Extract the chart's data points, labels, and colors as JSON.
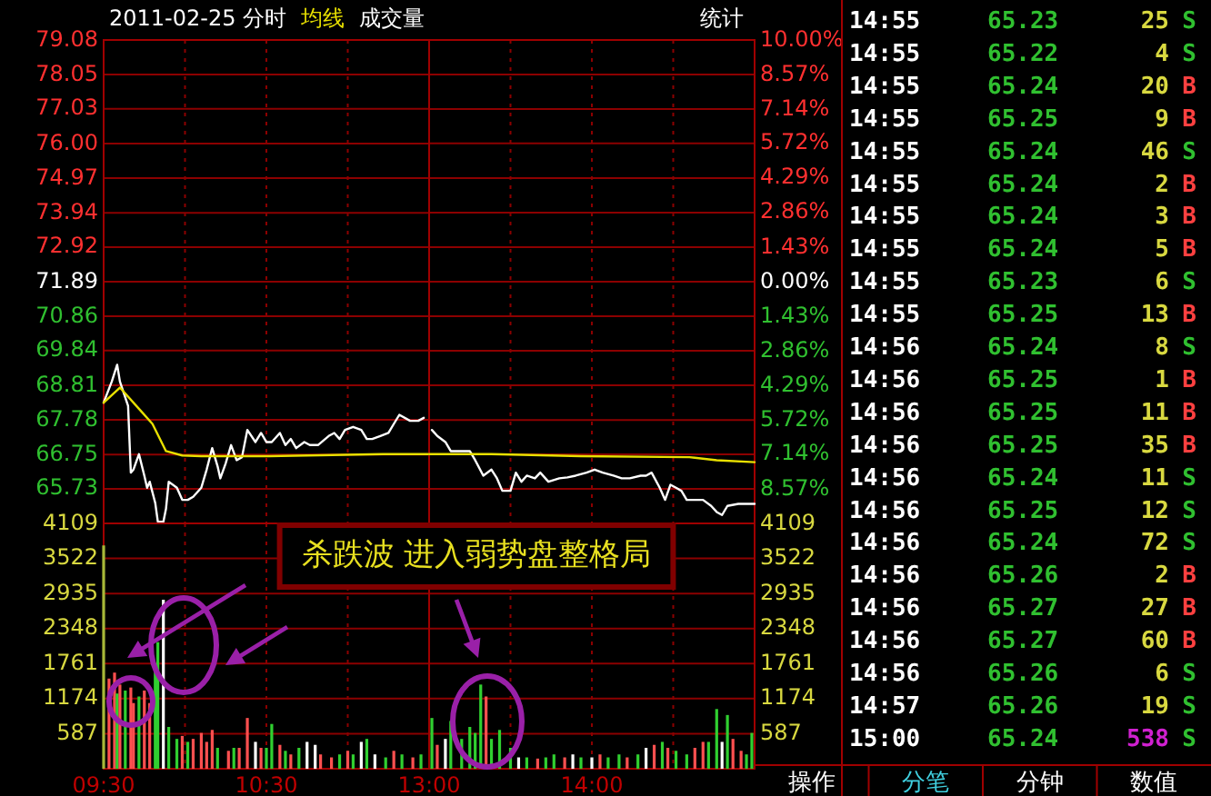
{
  "chart_data": [
    {
      "type": "line",
      "title": "2011-02-25 分时",
      "legend": "top",
      "grid": true,
      "tick_labels": "y",
      "xlim": [
        9.5,
        11.5
      ],
      "xticks": [
        9.5,
        10,
        10.5,
        11
      ],
      "ylim": [
        64.7,
        79.08
      ],
      "yticks": [
        79.08,
        78.05,
        77.03,
        {
          "value": 76.0,
          "label": "76.00"
        },
        74.97,
        73.94,
        72.92,
        71.89,
        70.86,
        69.84,
        68.81,
        67.78,
        66.75,
        65.73
      ],
      "annotations": [
        "统计"
      ],
      "series": [
        {
          "color": "#ffffff",
          "x": [
            9.5,
            9.55,
            9.583,
            9.6,
            9.65,
            9.667,
            9.683,
            9.717,
            9.75,
            9.767,
            9.783,
            9.817,
            9.833,
            9.867,
            9.883,
            9.9,
            9.95,
            9.983,
            10.017,
            10.05,
            10.1,
            10.133,
            10.167,
            10.2,
            10.217,
            10.25,
            10.283,
            10.317,
            10.35,
            10.383,
            10.433,
            10.467,
            10.5,
            10.533,
            10.583,
            10.617,
            10.65,
            10.683,
            10.733,
            10.767,
            10.817,
            10.883,
            10.917,
            10.95,
            10.983,
            11.033,
            11.083,
            11.117,
            11.15,
            11.2,
            11.25,
            11.283,
            11.317,
            11.383,
            11.433,
            11.467
          ],
          "values": [
            68.29,
            68.92,
            69.42,
            68.92,
            68.2,
            66.21,
            66.3,
            66.76,
            66.12,
            65.76,
            65.94,
            65.31,
            64.75,
            64.75,
            65.13,
            65.94,
            65.76,
            65.4,
            65.4,
            65.49,
            65.76,
            66.3,
            66.94,
            66.4,
            66.04,
            66.49,
            67.03,
            66.58,
            66.67,
            67.48,
            67.12,
            67.39,
            67.12,
            67.12,
            67.39,
            67.03,
            67.21,
            66.94,
            67.12,
            67.03,
            67.03,
            67.3,
            67.39,
            67.21,
            67.48,
            67.57,
            67.48,
            67.21,
            67.21,
            67.3,
            67.39,
            67.66,
            67.93,
            67.75,
            67.75,
            67.84
          ]
        },
        {
          "name": "均线",
          "color": "#e8e000",
          "x": [
            9.5,
            9.6,
            9.717,
            9.8,
            9.883,
            9.983,
            10.1,
            10.517,
            11.217,
            11.5
          ],
          "values": [
            68.29,
            68.74,
            68.11,
            67.66,
            66.85,
            66.72,
            66.7,
            66.7,
            66.76,
            66.76
          ]
        }
      ]
    },
    {
      "type": "line",
      "grid": true,
      "tick_labels": "y",
      "xlim": [
        13,
        15
      ],
      "xticks": [
        13,
        13.5,
        14,
        14.5
      ],
      "ylim": [
        64.7,
        79.08
      ],
      "y2lim": [
        -10,
        10
      ],
      "y2ticks": [
        {
          "value": 10,
          "label": "10.00%"
        },
        {
          "value": 8.57,
          "label": "8.57%"
        },
        {
          "value": 7.14,
          "label": "7.14%"
        },
        {
          "value": 5.72,
          "label": "5.72%"
        },
        {
          "value": 4.29,
          "label": "4.29%"
        },
        {
          "value": 2.86,
          "label": "2.86%"
        },
        {
          "value": 1.43,
          "label": "1.43%"
        },
        {
          "value": 0,
          "label": "0.00%"
        },
        {
          "value": -1.43,
          "label": "1.43%"
        },
        {
          "value": -2.86,
          "label": "2.86%"
        },
        {
          "value": -4.29,
          "label": "4.29%"
        },
        {
          "value": -5.72,
          "label": "5.72%"
        },
        {
          "value": -7.14,
          "label": "7.14%"
        },
        {
          "value": -8.57,
          "label": "8.57%"
        }
      ],
      "series": [
        {
          "color": "#ffffff",
          "x": [
            13.017,
            13.05,
            13.1,
            13.133,
            13.2,
            13.25,
            13.283,
            13.333,
            13.383,
            13.417,
            13.45,
            13.5,
            13.533,
            13.567,
            13.6,
            13.65,
            13.683,
            13.733,
            13.8,
            13.85,
            13.9,
            13.967,
            14.017,
            14.067,
            14.133,
            14.183,
            14.233,
            14.3,
            14.333,
            14.367,
            14.417,
            14.45,
            14.483,
            14.517,
            14.55,
            14.583,
            14.633,
            14.683,
            14.733,
            14.767,
            14.8,
            14.833,
            14.9,
            15
          ],
          "values": [
            67.48,
            67.3,
            67.12,
            66.85,
            66.85,
            66.85,
            66.58,
            66.12,
            66.3,
            66.04,
            65.67,
            65.67,
            66.21,
            65.94,
            66.12,
            66.04,
            66.21,
            65.94,
            66.04,
            66.07,
            66.12,
            66.21,
            66.3,
            66.21,
            66.12,
            66.04,
            66.04,
            66.12,
            66.12,
            66.21,
            65.76,
            65.4,
            65.85,
            65.76,
            65.67,
            65.4,
            65.4,
            65.4,
            65.22,
            65.04,
            64.95,
            65.22,
            65.28,
            65.28
          ]
        },
        {
          "color": "#e8e000",
          "x": [
            13,
            13.383,
            13.933,
            14.6,
            14.767,
            15
          ],
          "values": [
            66.76,
            66.76,
            66.7,
            66.67,
            66.58,
            66.52
          ]
        }
      ]
    },
    {
      "type": "bar",
      "legend": "top",
      "grid": true,
      "xlim": [
        9.5,
        11.5
      ],
      "xticks": [
        {
          "value": 9.5,
          "label": "09:30"
        },
        {
          "value": 10,
          "label": null
        },
        {
          "value": 10.5,
          "label": "10:30"
        },
        {
          "value": 11,
          "label": null
        }
      ],
      "ylim": [
        0,
        4109
      ],
      "yticks": [
        587,
        1174,
        1761,
        2348,
        2935,
        3522,
        4109
      ],
      "annotations": [
        "杀跌波 进入弱势盘整格局"
      ],
      "series": [
        {
          "name": "成交量",
          "x": [
            9.5,
            9.533,
            9.567,
            9.583,
            9.6,
            9.633,
            9.667,
            9.683,
            9.717,
            9.75,
            9.783,
            9.817,
            9.833,
            9.867,
            9.9,
            9.95,
            9.983,
            10.017,
            10.05,
            10.1,
            10.133,
            10.167,
            10.2,
            10.267,
            10.3,
            10.333,
            10.383,
            10.433,
            10.467,
            10.5,
            10.533,
            10.583,
            10.617,
            10.65,
            10.7,
            10.75,
            10.8,
            10.833,
            10.9,
            10.95,
            11,
            11.033,
            11.083,
            11.117,
            11.167,
            11.233,
            11.283,
            11.333,
            11.4,
            11.45
          ],
          "values": [
            3740,
            1510,
            1610,
            1260,
            1410,
            1310,
            1360,
            1100,
            1210,
            1310,
            1100,
            1710,
            2120,
            2830,
            700,
            500,
            550,
            450,
            500,
            600,
            450,
            650,
            350,
            300,
            350,
            350,
            850,
            450,
            350,
            350,
            750,
            400,
            300,
            240,
            350,
            450,
            400,
            240,
            190,
            240,
            300,
            240,
            450,
            500,
            240,
            190,
            300,
            240,
            190,
            240
          ],
          "colors": [
            "#a8b838",
            "#ff5050",
            "#ff5050",
            "#30d030",
            "#ff5050",
            "#30d030",
            "#ff5050",
            "#ff5050",
            "#30d030",
            "#ff5050",
            "#ff5050",
            "#30d030",
            "#30d030",
            "#ffffff",
            "#30d030",
            "#30d030",
            "#ff5050",
            "#30d030",
            "#ff5050",
            "#ff5050",
            "#ff5050",
            "#ff5050",
            "#30d030",
            "#ff5050",
            "#30d030",
            "#ff5050",
            "#ff5050",
            "#ffffff",
            "#ff5050",
            "#30d030",
            "#30d030",
            "#ff5050",
            "#30d030",
            "#ff5050",
            "#30d030",
            "#ffffff",
            "#ffffff",
            "#ff5050",
            "#ff5050",
            "#30d030",
            "#ff5050",
            "#30d030",
            "#ffffff",
            "#30d030",
            "#ffffff",
            "#30d030",
            "#ff5050",
            "#30d030",
            "#ff5050",
            "#30d030"
          ]
        }
      ]
    },
    {
      "type": "bar",
      "grid": true,
      "xlim": [
        13,
        15
      ],
      "xticks": [
        {
          "value": 13,
          "label": "13:00"
        },
        {
          "value": 13.5,
          "label": null
        },
        {
          "value": 14,
          "label": "14:00"
        },
        {
          "value": 14.5,
          "label": null
        }
      ],
      "y2lim": [
        0,
        4109
      ],
      "y2ticks": [
        587,
        1174,
        1761,
        2348,
        2935,
        3522,
        4109
      ],
      "series": [
        {
          "axis": "y2",
          "x": [
            13.017,
            13.05,
            13.1,
            13.133,
            13.2,
            13.25,
            13.283,
            13.317,
            13.35,
            13.383,
            13.433,
            13.5,
            13.55,
            13.6,
            13.667,
            13.717,
            13.767,
            13.833,
            13.883,
            13.933,
            14,
            14.05,
            14.1,
            14.167,
            14.217,
            14.283,
            14.333,
            14.383,
            14.433,
            14.467,
            14.517,
            14.583,
            14.633,
            14.683,
            14.717,
            14.767,
            14.8,
            14.833,
            14.867,
            14.917,
            14.95,
            14.983
          ],
          "values": [
            850,
            400,
            500,
            800,
            500,
            700,
            600,
            1410,
            1210,
            500,
            650,
            350,
            190,
            190,
            170,
            190,
            240,
            190,
            240,
            190,
            190,
            240,
            190,
            240,
            190,
            240,
            350,
            400,
            450,
            350,
            300,
            240,
            350,
            450,
            450,
            1000,
            450,
            900,
            500,
            300,
            240,
            600
          ],
          "colors": [
            "#30d030",
            "#ff5050",
            "#ffffff",
            "#30d030",
            "#30d030",
            "#30d030",
            "#30d030",
            "#30d030",
            "#ff5050",
            "#30d030",
            "#30d030",
            "#30d030",
            "#ffffff",
            "#30d030",
            "#ff5050",
            "#30d030",
            "#30d030",
            "#ff5050",
            "#ffffff",
            "#30d030",
            "#ffffff",
            "#ff5050",
            "#30d030",
            "#30d030",
            "#ff5050",
            "#30d030",
            "#ffffff",
            "#ff5050",
            "#30d030",
            "#ff5050",
            "#30d030",
            "#30d030",
            "#ff5050",
            "#ff5050",
            "#30d030",
            "#30d030",
            "#ffffff",
            "#30d030",
            "#ff5050",
            "#ff5050",
            "#30d030",
            "#30d030"
          ]
        }
      ]
    },
    {
      "type": "other",
      "annotations": [
        "14:55",
        "65.23",
        "25",
        "S",
        "14:55",
        "65.22",
        "4",
        "S",
        "14:55",
        "65.24",
        "20",
        "B",
        "14:55",
        "65.25",
        "9",
        "B",
        "14:55",
        "65.24",
        "46",
        "S",
        "14:55",
        "65.24",
        "2",
        "B",
        "14:55",
        "65.24",
        "3",
        "B",
        "14:55",
        "65.24",
        "5",
        "B",
        "14:55",
        "65.23",
        "6",
        "S",
        "14:55",
        "65.25",
        "13",
        "B",
        "14:56",
        "65.24",
        "8",
        "S",
        "14:56",
        "65.25",
        "1",
        "B",
        "14:56",
        "65.25",
        "11",
        "B",
        "14:56",
        "65.25",
        "35",
        "B",
        "14:56",
        "65.24",
        "11",
        "S",
        "14:56",
        "65.25",
        "12",
        "S",
        "14:56",
        "65.24",
        "72",
        "S",
        "14:56",
        "65.26",
        "2",
        "B",
        "14:56",
        "65.27",
        "27",
        "B",
        "14:56",
        "65.27",
        "60",
        "B",
        "14:56",
        "65.26",
        "6",
        "S",
        "14:57",
        "65.26",
        "19",
        "S",
        "15:00",
        "65.24",
        "538",
        "S"
      ],
      "categories": [
        "操作",
        "分笔",
        "分钟",
        "数值"
      ],
      "colors": [
        "#ffffff",
        "#30c030",
        "#d8d840",
        "#30c030",
        "#ffffff",
        "#30c030",
        "#d8d840",
        "#30c030",
        "#ffffff",
        "#30c030",
        "#d8d840",
        "#ff4040",
        "#ffffff",
        "#30c030",
        "#d8d840",
        "#ff4040",
        "#ffffff",
        "#30c030",
        "#d8d840",
        "#30c030",
        "#ffffff",
        "#30c030",
        "#d8d840",
        "#ff4040",
        "#ffffff",
        "#30c030",
        "#d8d840",
        "#ff4040",
        "#ffffff",
        "#30c030",
        "#d8d840",
        "#ff4040",
        "#ffffff",
        "#30c030",
        "#d8d840",
        "#30c030",
        "#ffffff",
        "#30c030",
        "#d8d840",
        "#ff4040",
        "#ffffff",
        "#30c030",
        "#d8d840",
        "#30c030",
        "#ffffff",
        "#30c030",
        "#d8d840",
        "#ff4040",
        "#ffffff",
        "#30c030",
        "#d8d840",
        "#ff4040",
        "#ffffff",
        "#30c030",
        "#d8d840",
        "#ff4040",
        "#ffffff",
        "#30c030",
        "#d8d840",
        "#30c030",
        "#ffffff",
        "#30c030",
        "#d8d840",
        "#30c030",
        "#ffffff",
        "#30c030",
        "#d8d840",
        "#30c030",
        "#ffffff",
        "#30c030",
        "#d8d840",
        "#ff4040",
        "#ffffff",
        "#30c030",
        "#d8d840",
        "#ff4040",
        "#ffffff",
        "#30c030",
        "#d8d840",
        "#ff4040",
        "#ffffff",
        "#30c030",
        "#d8d840",
        "#30c030",
        "#ffffff",
        "#30c030",
        "#d8d840",
        "#30c030",
        "#ffffff",
        "#30c030",
        "#d020d0",
        "#30c030",
        "#ffffff",
        "#40d0e0",
        "#ffffff",
        "#ffffff"
      ]
    }
  ]
}
